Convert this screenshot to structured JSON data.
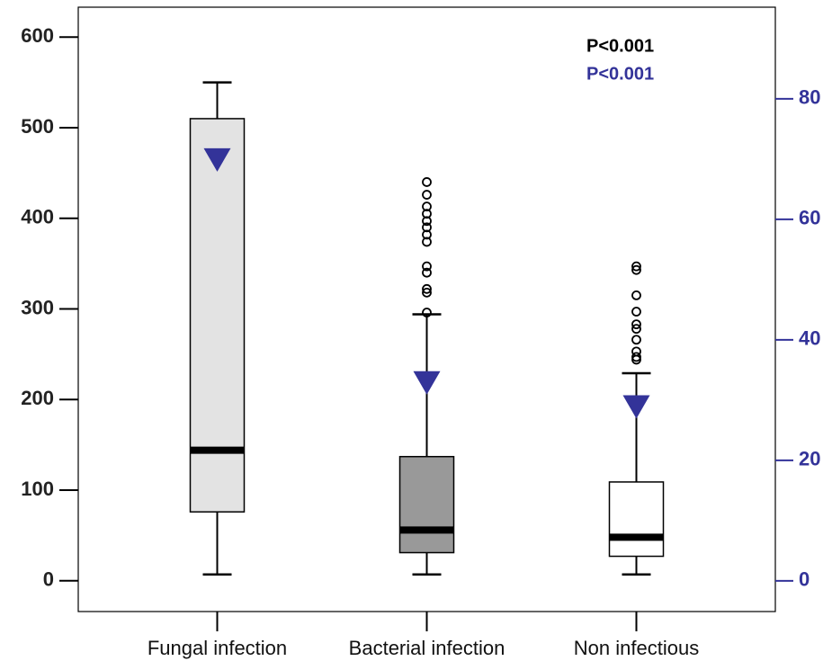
{
  "chart_data": {
    "type": "box",
    "categories": [
      "Fungal infection",
      "Bacterial infection",
      "Non infectious"
    ],
    "box_colors": [
      "#e3e3e3",
      "#999999",
      "#ffffff"
    ],
    "boxes": [
      {
        "whisker_low": 7,
        "q1": 76,
        "median": 144,
        "q3": 510,
        "whisker_high": 550,
        "outliers": []
      },
      {
        "whisker_low": 7,
        "q1": 31,
        "median": 56,
        "q3": 137,
        "whisker_high": 294,
        "outliers": [
          296,
          318,
          322,
          340,
          347,
          374,
          382,
          390,
          397,
          405,
          413,
          426,
          440
        ]
      },
      {
        "whisker_low": 7,
        "q1": 27,
        "median": 48,
        "q3": 109,
        "whisker_high": 229,
        "outliers": [
          244,
          247,
          253,
          266,
          278,
          283,
          297,
          315,
          343,
          347
        ]
      }
    ],
    "markers": {
      "axis": "y2",
      "color": "#333399",
      "values": [
        70,
        33,
        29
      ]
    },
    "ylim": [
      -34,
      633
    ],
    "yticks": [
      0,
      100,
      200,
      300,
      400,
      500,
      600
    ],
    "y2lim": [
      -5.1,
      95.2
    ],
    "y2ticks": [
      0,
      20,
      40,
      60,
      80
    ],
    "y2_color": "#333399",
    "annotations": [
      {
        "text": "P<0.001",
        "color": "#000000"
      },
      {
        "text": "P<0.001",
        "color": "#333399"
      }
    ]
  }
}
